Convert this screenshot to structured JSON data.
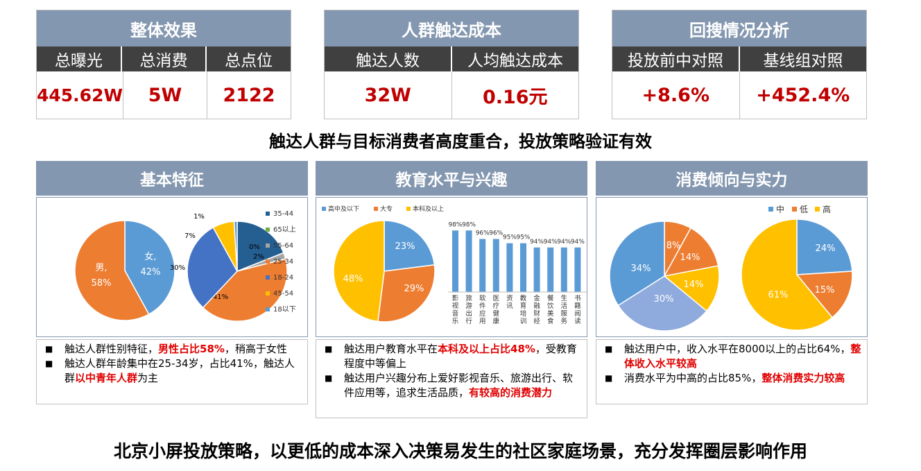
{
  "kpis": [
    {
      "title": "整体效果",
      "heads": [
        "总曝光",
        "总消费",
        "总点位"
      ],
      "values": [
        "445.62W",
        "5W",
        "2122"
      ]
    },
    {
      "title": "人群触达成本",
      "heads": [
        "触达人数",
        "人均触达成本"
      ],
      "values": [
        "32W",
        "0.16元"
      ]
    },
    {
      "title": "回搜情况分析",
      "heads": [
        "投放前中对照",
        "基线组对照"
      ],
      "values": [
        "+8.6%",
        "+452.4%"
      ]
    }
  ],
  "headline1": "触达人群与目标消费者高度重合，投放策略验证有效",
  "headline2": "北京小屏投放策略，以更低的成本深入决策易发生的社区家庭场景，充分发挥圈层影响作用",
  "sections": {
    "basic": {
      "title": "基本特征",
      "notes": [
        {
          "pre": "触达人群性别特征，",
          "hl": "男性占比58%",
          "post": "，稍高于女性"
        },
        {
          "pre": "触达人群年龄集中在25-34岁，占比41%，触达人群",
          "hl": "以中青年人群",
          "post": "为主"
        }
      ]
    },
    "edu": {
      "title": "教育水平与兴趣",
      "notes": [
        {
          "pre": "触达用户教育水平在",
          "hl": "本科及以上占比48%",
          "post": "，受教育程度中等偏上"
        },
        {
          "pre": "触达用户兴趣分布上爱好影视音乐、旅游出行、软件应用等，追求生活品质，",
          "hl": "有较高的消费潜力",
          "post": ""
        }
      ]
    },
    "spend": {
      "title": "消费倾向与实力",
      "notes": [
        {
          "pre": "触达用户中，收入水平在8000以上的占比64%，",
          "hl": "整体收入水平较高",
          "post": ""
        },
        {
          "pre": "消费水平为中高的占比85%，",
          "hl": "整体消费实力较高",
          "post": ""
        }
      ]
    }
  },
  "chart_data": [
    {
      "type": "pie",
      "title": "",
      "slices": [
        {
          "name": "女",
          "value": 42,
          "label": "女,\n42%",
          "color": "#5b9bd5"
        },
        {
          "name": "男",
          "value": 58,
          "label": "男,\n58%",
          "color": "#ed7d31"
        }
      ]
    },
    {
      "type": "pie",
      "title": "",
      "legend": "right",
      "slices": [
        {
          "name": "35-44",
          "value": 19,
          "color": "#255e91"
        },
        {
          "name": "65以上",
          "value": 0,
          "color": "#70ad47"
        },
        {
          "name": "55-64",
          "value": 2,
          "color": "#a5a5a5"
        },
        {
          "name": "25-34",
          "value": 41,
          "color": "#ed7d31"
        },
        {
          "name": "18-24",
          "value": 30,
          "color": "#4472c4"
        },
        {
          "name": "45-54",
          "value": 7,
          "color": "#ffc000"
        },
        {
          "name": "18以下",
          "value": 1,
          "color": "#5b9bd5"
        }
      ]
    },
    {
      "type": "pie",
      "title": "",
      "legend": "top",
      "slices": [
        {
          "name": "高中及以下",
          "value": 23,
          "color": "#5b9bd5"
        },
        {
          "name": "大专",
          "value": 29,
          "color": "#ed7d31"
        },
        {
          "name": "本科及以上",
          "value": 48,
          "color": "#ffc000"
        }
      ]
    },
    {
      "type": "bar",
      "title": "",
      "categories": [
        "影视音乐",
        "旅游出行",
        "软件应用",
        "医疗健康",
        "资讯",
        "教育培训",
        "金融财经",
        "餐饮美食",
        "生活服务",
        "书籍阅读"
      ],
      "values": [
        98,
        98,
        96,
        96,
        95,
        95,
        94,
        94,
        94,
        94
      ],
      "value_labels": [
        "98%",
        "98%",
        "96%",
        "96%",
        "95%",
        "95%",
        "94%",
        "94%",
        "94%",
        "94%"
      ],
      "color": "#5b9bd5"
    },
    {
      "type": "pie",
      "title": "",
      "slices": [
        {
          "name": "低",
          "value": 8,
          "color": "#ed7d31"
        },
        {
          "name": "低",
          "value": 14,
          "color": "#ed7d31"
        },
        {
          "name": "高",
          "value": 14,
          "color": "#ffc000"
        },
        {
          "name": "中",
          "value": 30,
          "color": "#8faadc"
        },
        {
          "name": "中",
          "value": 34,
          "color": "#5b9bd5"
        }
      ]
    },
    {
      "type": "pie",
      "title": "",
      "legend_items": [
        {
          "name": "中",
          "color": "#5b9bd5"
        },
        {
          "name": "低",
          "color": "#ed7d31"
        },
        {
          "name": "高",
          "color": "#ffc000"
        }
      ],
      "slices": [
        {
          "name": "中",
          "value": 24,
          "color": "#5b9bd5"
        },
        {
          "name": "低",
          "value": 15,
          "color": "#ed7d31"
        },
        {
          "name": "高",
          "value": 61,
          "color": "#ffc000"
        }
      ]
    }
  ]
}
